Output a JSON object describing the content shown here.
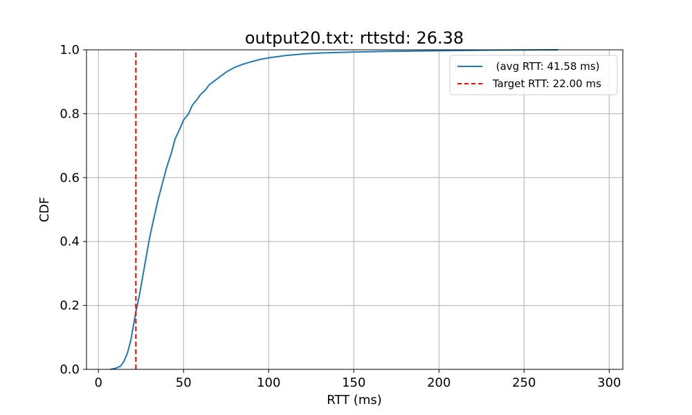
{
  "chart_data": {
    "type": "line",
    "title": "output20.txt: rttstd: 26.38",
    "xlabel": "RTT (ms)",
    "ylabel": "CDF",
    "xlim": [
      -7,
      308
    ],
    "ylim": [
      0.0,
      1.0
    ],
    "xticks": [
      0,
      50,
      100,
      150,
      200,
      250,
      300
    ],
    "yticks": [
      0.0,
      0.2,
      0.4,
      0.6,
      0.8,
      1.0
    ],
    "xtick_labels": [
      "0",
      "50",
      "100",
      "150",
      "200",
      "250",
      "300"
    ],
    "ytick_labels": [
      "0.0",
      "0.2",
      "0.4",
      "0.6",
      "0.8",
      "1.0"
    ],
    "grid": true,
    "legend_position": "top-right",
    "series": [
      {
        "name": " (avg RTT: 41.58 ms)",
        "color": "#1f77b4",
        "style": "solid",
        "x": [
          7,
          10,
          13,
          15,
          17,
          19,
          20,
          21,
          22,
          24,
          26,
          28,
          30,
          32,
          35,
          38,
          40,
          43,
          45,
          48,
          50,
          53,
          55,
          58,
          60,
          63,
          65,
          70,
          75,
          80,
          85,
          90,
          95,
          100,
          110,
          120,
          130,
          150,
          170,
          200,
          230,
          270
        ],
        "y": [
          0.0,
          0.003,
          0.01,
          0.025,
          0.05,
          0.09,
          0.12,
          0.15,
          0.18,
          0.23,
          0.29,
          0.35,
          0.41,
          0.46,
          0.53,
          0.59,
          0.63,
          0.68,
          0.72,
          0.755,
          0.78,
          0.8,
          0.825,
          0.845,
          0.86,
          0.875,
          0.89,
          0.91,
          0.93,
          0.945,
          0.955,
          0.963,
          0.97,
          0.975,
          0.982,
          0.987,
          0.99,
          0.993,
          0.995,
          0.997,
          0.999,
          1.0
        ]
      },
      {
        "name": "Target RTT: 22.00 ms",
        "color": "#ff0000",
        "style": "dashed",
        "x": [
          22,
          22
        ],
        "y": [
          0.0,
          1.0
        ]
      }
    ]
  }
}
